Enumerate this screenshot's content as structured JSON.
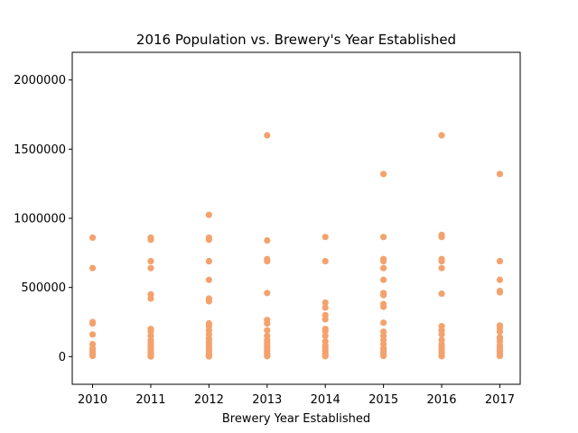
{
  "chart_data": {
    "type": "scatter",
    "title": "2016 Population vs. Brewery's Year Established",
    "xlabel": "Brewery Year Established",
    "ylabel": "",
    "xlim": [
      2009.65,
      2017.35
    ],
    "ylim": [
      -200000,
      2200000
    ],
    "xticks": [
      "2010",
      "2011",
      "2012",
      "2013",
      "2014",
      "2015",
      "2016",
      "2017"
    ],
    "yticks": [
      "0",
      "500000",
      "1000000",
      "1500000",
      "2000000"
    ],
    "grid": false,
    "marker_color": "#f4a26d",
    "series": [
      {
        "x": [
          2010,
          2010,
          2010,
          2010,
          2010,
          2010,
          2010,
          2010,
          2010,
          2010,
          2010,
          2011,
          2011,
          2011,
          2011,
          2011,
          2011,
          2011,
          2011,
          2011,
          2011,
          2011,
          2011,
          2011,
          2011,
          2011,
          2011,
          2011,
          2011,
          2011,
          2012,
          2012,
          2012,
          2012,
          2012,
          2012,
          2012,
          2012,
          2012,
          2012,
          2012,
          2012,
          2012,
          2012,
          2012,
          2012,
          2012,
          2012,
          2012,
          2012,
          2012,
          2013,
          2013,
          2013,
          2013,
          2013,
          2013,
          2013,
          2013,
          2013,
          2013,
          2013,
          2013,
          2013,
          2013,
          2013,
          2013,
          2013,
          2013,
          2014,
          2014,
          2014,
          2014,
          2014,
          2014,
          2014,
          2014,
          2014,
          2014,
          2014,
          2014,
          2014,
          2014,
          2014,
          2014,
          2015,
          2015,
          2015,
          2015,
          2015,
          2015,
          2015,
          2015,
          2015,
          2015,
          2015,
          2015,
          2015,
          2015,
          2015,
          2015,
          2015,
          2015,
          2015,
          2016,
          2016,
          2016,
          2016,
          2016,
          2016,
          2016,
          2016,
          2016,
          2016,
          2016,
          2016,
          2016,
          2016,
          2016,
          2016,
          2016,
          2017,
          2017,
          2017,
          2017,
          2017,
          2017,
          2017,
          2017,
          2017,
          2017,
          2017,
          2017,
          2017,
          2017,
          2017,
          2017
        ],
        "y": [
          860000,
          640000,
          250000,
          240000,
          160000,
          90000,
          60000,
          40000,
          20000,
          10000,
          5000,
          860000,
          845000,
          690000,
          640000,
          450000,
          420000,
          200000,
          180000,
          150000,
          120000,
          100000,
          80000,
          60000,
          40000,
          25000,
          15000,
          8000,
          3000,
          1000,
          1025000,
          860000,
          845000,
          690000,
          555000,
          420000,
          400000,
          240000,
          220000,
          190000,
          160000,
          130000,
          110000,
          90000,
          70000,
          50000,
          35000,
          20000,
          10000,
          5000,
          2000,
          1600000,
          840000,
          705000,
          690000,
          460000,
          265000,
          240000,
          190000,
          150000,
          120000,
          100000,
          80000,
          60000,
          40000,
          25000,
          15000,
          8000,
          3000,
          865000,
          690000,
          390000,
          355000,
          300000,
          270000,
          200000,
          185000,
          150000,
          110000,
          80000,
          60000,
          40000,
          20000,
          10000,
          3000,
          1320000,
          865000,
          705000,
          690000,
          640000,
          555000,
          460000,
          445000,
          380000,
          360000,
          245000,
          180000,
          150000,
          120000,
          90000,
          60000,
          40000,
          20000,
          5000,
          1600000,
          880000,
          865000,
          705000,
          690000,
          640000,
          455000,
          220000,
          190000,
          160000,
          120000,
          90000,
          70000,
          50000,
          30000,
          15000,
          3000,
          1320000,
          690000,
          555000,
          475000,
          465000,
          225000,
          205000,
          180000,
          140000,
          130000,
          110000,
          80000,
          60000,
          40000,
          20000,
          5000
        ]
      }
    ]
  }
}
